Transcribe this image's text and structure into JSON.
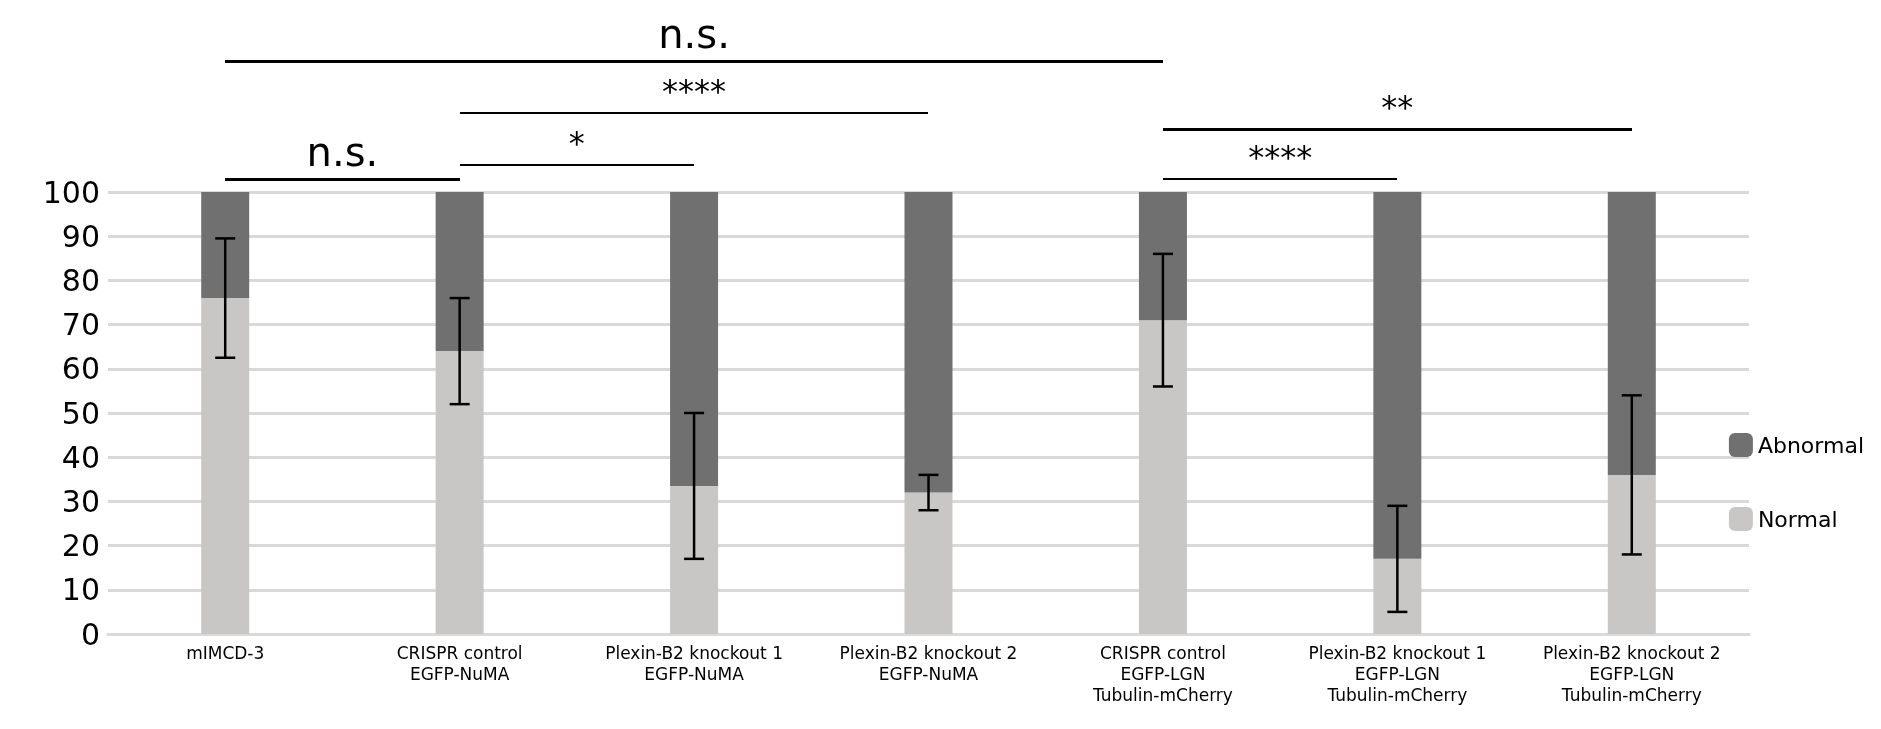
{
  "chart_data": {
    "type": "bar",
    "stacked": true,
    "categories": [
      "mIMCD-3",
      "CRISPR control\nEGFP-NuMA",
      "Plexin-B2 knockout 1\nEGFP-NuMA",
      "Plexin-B2 knockout 2\nEGFP-NuMA",
      "CRISPR control\nEGFP-LGN\nTubulin-mCherry",
      "Plexin-B2 knockout 1\nEGFP-LGN\nTubulin-mCherry",
      "Plexin-B2 knockout 2\nEGFP-LGN\nTubulin-mCherry"
    ],
    "series": [
      {
        "name": "Normal",
        "color": "#c8c7c6",
        "values": [
          76,
          64,
          33.5,
          32,
          71,
          17,
          36
        ],
        "errors": [
          13.5,
          12,
          16.5,
          4,
          15,
          12,
          18
        ]
      },
      {
        "name": "Abnormal",
        "color": "#717071",
        "values": [
          24,
          36,
          66.5,
          68,
          29,
          83,
          64
        ]
      }
    ],
    "ylim": [
      0,
      100
    ],
    "yticks": [
      0,
      10,
      20,
      30,
      40,
      50,
      60,
      70,
      80,
      90,
      100
    ],
    "grid": "y",
    "legend": "right",
    "annotations": [
      "n.s.",
      "****",
      "**",
      "n.s.",
      "*",
      "****"
    ]
  }
}
